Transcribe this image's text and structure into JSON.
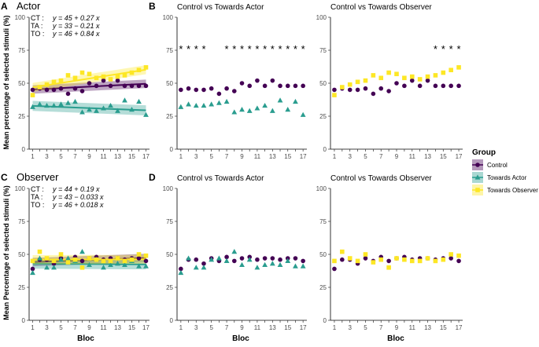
{
  "figure": {
    "x_label": "Bloc",
    "y_label_top": "Mean percentage of selected stimuli (%)",
    "y_label_bottom": "Mean Percentage of selected stimuli (%)",
    "colors": {
      "control": "#440154",
      "actor": "#2a9d8f",
      "observer": "#fde725"
    }
  },
  "legend": {
    "title": "Group",
    "items": [
      {
        "label": "Control",
        "color": "#440154",
        "shape": "circle"
      },
      {
        "label": "Towards Actor",
        "color": "#2a9d8f",
        "shape": "triangle"
      },
      {
        "label": "Towards Observer",
        "color": "#fde725",
        "shape": "square"
      }
    ]
  },
  "chart_data": [
    {
      "id": "A",
      "panel_label": "A",
      "type": "scatter",
      "title": "Actor",
      "x": [
        1,
        2,
        3,
        4,
        5,
        6,
        7,
        8,
        9,
        10,
        11,
        12,
        13,
        14,
        15,
        16,
        17
      ],
      "xticks": [
        1,
        3,
        5,
        7,
        9,
        11,
        13,
        15,
        17
      ],
      "ylim": [
        0,
        100
      ],
      "yticks": [
        0,
        25,
        50,
        75,
        100
      ],
      "equations": [
        {
          "group": "CT :",
          "formula": "y = 45 + 0.27 x"
        },
        {
          "group": "TA :",
          "formula": "y = 33 − 0.21 x"
        },
        {
          "group": "TO :",
          "formula": "y = 46 + 0.84 x"
        }
      ],
      "series": [
        {
          "name": "Control",
          "values": [
            45,
            46,
            45,
            45,
            46,
            42,
            46,
            44,
            50,
            48,
            52,
            48,
            52,
            48,
            48,
            48,
            48
          ],
          "fit": [
            45,
            0.27
          ]
        },
        {
          "name": "Towards Actor",
          "values": [
            32,
            34,
            33,
            33,
            34,
            35,
            36,
            28,
            30,
            29,
            31,
            33,
            29,
            37,
            30,
            36,
            26
          ],
          "fit": [
            33,
            -0.21
          ]
        },
        {
          "name": "Towards Observer",
          "values": [
            41,
            47,
            49,
            51,
            52,
            56,
            54,
            58,
            57,
            54,
            55,
            53,
            55,
            56,
            58,
            60,
            62
          ],
          "fit": [
            46,
            0.84
          ]
        }
      ],
      "stars": []
    },
    {
      "id": "B1",
      "panel_label": "B",
      "type": "scatter",
      "title": "Control vs Towards Actor",
      "x": [
        1,
        2,
        3,
        4,
        5,
        6,
        7,
        8,
        9,
        10,
        11,
        12,
        13,
        14,
        15,
        16,
        17
      ],
      "xticks": [
        1,
        3,
        5,
        7,
        9,
        11,
        13,
        15,
        17
      ],
      "ylim": [
        0,
        100
      ],
      "yticks": [
        0,
        25,
        50,
        75,
        100
      ],
      "equations": [],
      "series": [
        {
          "name": "Control",
          "values": [
            45,
            46,
            45,
            45,
            46,
            42,
            46,
            44,
            50,
            48,
            52,
            48,
            52,
            48,
            48,
            48,
            48
          ]
        },
        {
          "name": "Towards Actor",
          "values": [
            32,
            34,
            33,
            33,
            34,
            35,
            36,
            28,
            30,
            29,
            31,
            33,
            29,
            37,
            30,
            36,
            26
          ]
        }
      ],
      "stars": [
        1,
        2,
        3,
        4,
        7,
        8,
        9,
        10,
        11,
        12,
        13,
        14,
        15,
        16,
        17
      ]
    },
    {
      "id": "B2",
      "panel_label": "",
      "type": "scatter",
      "title": "Control vs Towards Observer",
      "x": [
        1,
        2,
        3,
        4,
        5,
        6,
        7,
        8,
        9,
        10,
        11,
        12,
        13,
        14,
        15,
        16,
        17
      ],
      "xticks": [
        1,
        3,
        5,
        7,
        9,
        11,
        13,
        15,
        17
      ],
      "ylim": [
        0,
        100
      ],
      "yticks": [
        0,
        25,
        50,
        75,
        100
      ],
      "equations": [],
      "series": [
        {
          "name": "Control",
          "values": [
            45,
            46,
            45,
            45,
            46,
            42,
            46,
            44,
            50,
            48,
            52,
            48,
            52,
            48,
            48,
            48,
            48
          ]
        },
        {
          "name": "Towards Observer",
          "values": [
            41,
            47,
            49,
            51,
            52,
            56,
            54,
            58,
            57,
            54,
            55,
            53,
            55,
            56,
            58,
            60,
            62
          ]
        }
      ],
      "stars": [
        14,
        15,
        16,
        17
      ]
    },
    {
      "id": "C",
      "panel_label": "C",
      "type": "scatter",
      "title": "Observer",
      "x": [
        1,
        2,
        3,
        4,
        5,
        6,
        7,
        8,
        9,
        10,
        11,
        12,
        13,
        14,
        15,
        16,
        17
      ],
      "xticks": [
        1,
        3,
        5,
        7,
        9,
        11,
        13,
        15,
        17
      ],
      "ylim": [
        0,
        100
      ],
      "yticks": [
        0,
        25,
        50,
        75,
        100
      ],
      "equations": [
        {
          "group": "CT :",
          "formula": "y = 44 + 0.19 x"
        },
        {
          "group": "TA :",
          "formula": "y = 43 − 0.033 x"
        },
        {
          "group": "TO :",
          "formula": "y = 46 + 0.018 x"
        }
      ],
      "series": [
        {
          "name": "Control",
          "values": [
            39,
            46,
            46,
            43,
            47,
            45,
            48,
            45,
            47,
            48,
            46,
            47,
            47,
            46,
            47,
            47,
            45
          ]
        },
        {
          "name": "Towards Actor",
          "values": [
            36,
            47,
            40,
            40,
            46,
            47,
            45,
            52,
            42,
            46,
            40,
            42,
            43,
            42,
            45,
            41,
            41
          ]
        },
        {
          "name": "Towards Observer",
          "values": [
            45,
            52,
            47,
            45,
            50,
            44,
            46,
            40,
            47,
            46,
            45,
            45,
            47,
            45,
            46,
            50,
            49
          ]
        }
      ],
      "fits": [
        [
          44,
          0.19
        ],
        [
          43,
          -0.033
        ],
        [
          46,
          0.018
        ]
      ],
      "stars": []
    },
    {
      "id": "D1",
      "panel_label": "D",
      "type": "scatter",
      "title": "Control vs Towards Actor",
      "x": [
        1,
        2,
        3,
        4,
        5,
        6,
        7,
        8,
        9,
        10,
        11,
        12,
        13,
        14,
        15,
        16,
        17
      ],
      "xticks": [
        1,
        3,
        5,
        7,
        9,
        11,
        13,
        15,
        17
      ],
      "ylim": [
        0,
        100
      ],
      "yticks": [
        0,
        25,
        50,
        75,
        100
      ],
      "equations": [],
      "series": [
        {
          "name": "Control",
          "values": [
            39,
            46,
            46,
            43,
            47,
            45,
            48,
            45,
            47,
            48,
            46,
            47,
            47,
            46,
            47,
            47,
            45
          ]
        },
        {
          "name": "Towards Actor",
          "values": [
            36,
            47,
            40,
            40,
            46,
            47,
            45,
            52,
            42,
            46,
            40,
            42,
            43,
            42,
            45,
            41,
            41
          ]
        }
      ],
      "stars": []
    },
    {
      "id": "D2",
      "panel_label": "",
      "type": "scatter",
      "title": "Control vs Towards Observer",
      "x": [
        1,
        2,
        3,
        4,
        5,
        6,
        7,
        8,
        9,
        10,
        11,
        12,
        13,
        14,
        15,
        16,
        17
      ],
      "xticks": [
        1,
        3,
        5,
        7,
        9,
        11,
        13,
        15,
        17
      ],
      "ylim": [
        0,
        100
      ],
      "yticks": [
        0,
        25,
        50,
        75,
        100
      ],
      "equations": [],
      "series": [
        {
          "name": "Control",
          "values": [
            39,
            46,
            46,
            43,
            47,
            45,
            48,
            45,
            47,
            48,
            46,
            47,
            47,
            46,
            47,
            47,
            45
          ]
        },
        {
          "name": "Towards Observer",
          "values": [
            45,
            52,
            47,
            45,
            50,
            44,
            46,
            40,
            47,
            46,
            45,
            45,
            47,
            45,
            46,
            50,
            49
          ]
        }
      ],
      "stars": []
    }
  ]
}
